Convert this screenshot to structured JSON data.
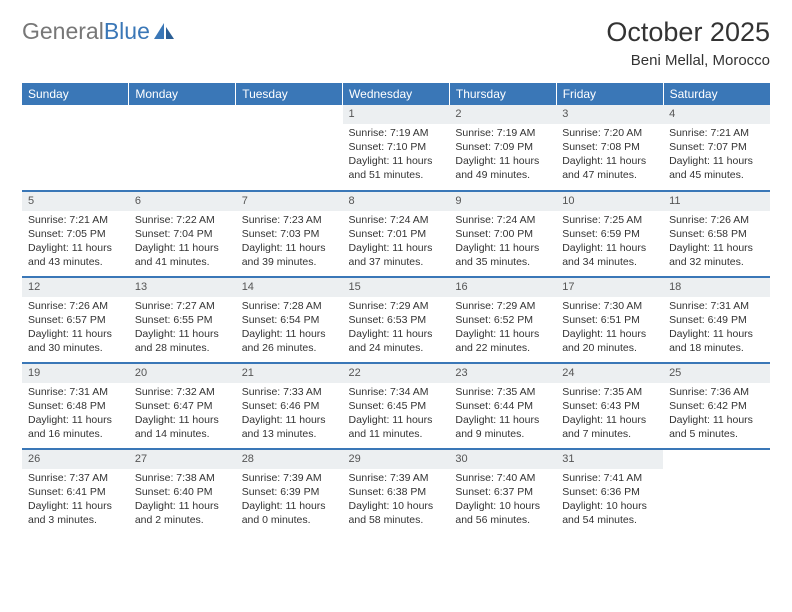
{
  "brand": {
    "part1": "General",
    "part2": "Blue"
  },
  "title": "October 2025",
  "location": "Beni Mellal, Morocco",
  "theme": {
    "header_bg": "#3a77b7",
    "header_fg": "#ffffff",
    "daynum_bg": "#eceff1",
    "row_border": "#3a77b7",
    "text_color": "#333333",
    "title_fontsize": 27,
    "subtitle_fontsize": 15,
    "dayhdr_fontsize": 12,
    "cell_fontsize": 10.5
  },
  "day_headers": [
    "Sunday",
    "Monday",
    "Tuesday",
    "Wednesday",
    "Thursday",
    "Friday",
    "Saturday"
  ],
  "weeks": [
    [
      {
        "n": "",
        "l1": "",
        "l2": "",
        "l3": "",
        "l4": ""
      },
      {
        "n": "",
        "l1": "",
        "l2": "",
        "l3": "",
        "l4": ""
      },
      {
        "n": "",
        "l1": "",
        "l2": "",
        "l3": "",
        "l4": ""
      },
      {
        "n": "1",
        "l1": "Sunrise: 7:19 AM",
        "l2": "Sunset: 7:10 PM",
        "l3": "Daylight: 11 hours",
        "l4": "and 51 minutes."
      },
      {
        "n": "2",
        "l1": "Sunrise: 7:19 AM",
        "l2": "Sunset: 7:09 PM",
        "l3": "Daylight: 11 hours",
        "l4": "and 49 minutes."
      },
      {
        "n": "3",
        "l1": "Sunrise: 7:20 AM",
        "l2": "Sunset: 7:08 PM",
        "l3": "Daylight: 11 hours",
        "l4": "and 47 minutes."
      },
      {
        "n": "4",
        "l1": "Sunrise: 7:21 AM",
        "l2": "Sunset: 7:07 PM",
        "l3": "Daylight: 11 hours",
        "l4": "and 45 minutes."
      }
    ],
    [
      {
        "n": "5",
        "l1": "Sunrise: 7:21 AM",
        "l2": "Sunset: 7:05 PM",
        "l3": "Daylight: 11 hours",
        "l4": "and 43 minutes."
      },
      {
        "n": "6",
        "l1": "Sunrise: 7:22 AM",
        "l2": "Sunset: 7:04 PM",
        "l3": "Daylight: 11 hours",
        "l4": "and 41 minutes."
      },
      {
        "n": "7",
        "l1": "Sunrise: 7:23 AM",
        "l2": "Sunset: 7:03 PM",
        "l3": "Daylight: 11 hours",
        "l4": "and 39 minutes."
      },
      {
        "n": "8",
        "l1": "Sunrise: 7:24 AM",
        "l2": "Sunset: 7:01 PM",
        "l3": "Daylight: 11 hours",
        "l4": "and 37 minutes."
      },
      {
        "n": "9",
        "l1": "Sunrise: 7:24 AM",
        "l2": "Sunset: 7:00 PM",
        "l3": "Daylight: 11 hours",
        "l4": "and 35 minutes."
      },
      {
        "n": "10",
        "l1": "Sunrise: 7:25 AM",
        "l2": "Sunset: 6:59 PM",
        "l3": "Daylight: 11 hours",
        "l4": "and 34 minutes."
      },
      {
        "n": "11",
        "l1": "Sunrise: 7:26 AM",
        "l2": "Sunset: 6:58 PM",
        "l3": "Daylight: 11 hours",
        "l4": "and 32 minutes."
      }
    ],
    [
      {
        "n": "12",
        "l1": "Sunrise: 7:26 AM",
        "l2": "Sunset: 6:57 PM",
        "l3": "Daylight: 11 hours",
        "l4": "and 30 minutes."
      },
      {
        "n": "13",
        "l1": "Sunrise: 7:27 AM",
        "l2": "Sunset: 6:55 PM",
        "l3": "Daylight: 11 hours",
        "l4": "and 28 minutes."
      },
      {
        "n": "14",
        "l1": "Sunrise: 7:28 AM",
        "l2": "Sunset: 6:54 PM",
        "l3": "Daylight: 11 hours",
        "l4": "and 26 minutes."
      },
      {
        "n": "15",
        "l1": "Sunrise: 7:29 AM",
        "l2": "Sunset: 6:53 PM",
        "l3": "Daylight: 11 hours",
        "l4": "and 24 minutes."
      },
      {
        "n": "16",
        "l1": "Sunrise: 7:29 AM",
        "l2": "Sunset: 6:52 PM",
        "l3": "Daylight: 11 hours",
        "l4": "and 22 minutes."
      },
      {
        "n": "17",
        "l1": "Sunrise: 7:30 AM",
        "l2": "Sunset: 6:51 PM",
        "l3": "Daylight: 11 hours",
        "l4": "and 20 minutes."
      },
      {
        "n": "18",
        "l1": "Sunrise: 7:31 AM",
        "l2": "Sunset: 6:49 PM",
        "l3": "Daylight: 11 hours",
        "l4": "and 18 minutes."
      }
    ],
    [
      {
        "n": "19",
        "l1": "Sunrise: 7:31 AM",
        "l2": "Sunset: 6:48 PM",
        "l3": "Daylight: 11 hours",
        "l4": "and 16 minutes."
      },
      {
        "n": "20",
        "l1": "Sunrise: 7:32 AM",
        "l2": "Sunset: 6:47 PM",
        "l3": "Daylight: 11 hours",
        "l4": "and 14 minutes."
      },
      {
        "n": "21",
        "l1": "Sunrise: 7:33 AM",
        "l2": "Sunset: 6:46 PM",
        "l3": "Daylight: 11 hours",
        "l4": "and 13 minutes."
      },
      {
        "n": "22",
        "l1": "Sunrise: 7:34 AM",
        "l2": "Sunset: 6:45 PM",
        "l3": "Daylight: 11 hours",
        "l4": "and 11 minutes."
      },
      {
        "n": "23",
        "l1": "Sunrise: 7:35 AM",
        "l2": "Sunset: 6:44 PM",
        "l3": "Daylight: 11 hours",
        "l4": "and 9 minutes."
      },
      {
        "n": "24",
        "l1": "Sunrise: 7:35 AM",
        "l2": "Sunset: 6:43 PM",
        "l3": "Daylight: 11 hours",
        "l4": "and 7 minutes."
      },
      {
        "n": "25",
        "l1": "Sunrise: 7:36 AM",
        "l2": "Sunset: 6:42 PM",
        "l3": "Daylight: 11 hours",
        "l4": "and 5 minutes."
      }
    ],
    [
      {
        "n": "26",
        "l1": "Sunrise: 7:37 AM",
        "l2": "Sunset: 6:41 PM",
        "l3": "Daylight: 11 hours",
        "l4": "and 3 minutes."
      },
      {
        "n": "27",
        "l1": "Sunrise: 7:38 AM",
        "l2": "Sunset: 6:40 PM",
        "l3": "Daylight: 11 hours",
        "l4": "and 2 minutes."
      },
      {
        "n": "28",
        "l1": "Sunrise: 7:39 AM",
        "l2": "Sunset: 6:39 PM",
        "l3": "Daylight: 11 hours",
        "l4": "and 0 minutes."
      },
      {
        "n": "29",
        "l1": "Sunrise: 7:39 AM",
        "l2": "Sunset: 6:38 PM",
        "l3": "Daylight: 10 hours",
        "l4": "and 58 minutes."
      },
      {
        "n": "30",
        "l1": "Sunrise: 7:40 AM",
        "l2": "Sunset: 6:37 PM",
        "l3": "Daylight: 10 hours",
        "l4": "and 56 minutes."
      },
      {
        "n": "31",
        "l1": "Sunrise: 7:41 AM",
        "l2": "Sunset: 6:36 PM",
        "l3": "Daylight: 10 hours",
        "l4": "and 54 minutes."
      },
      {
        "n": "",
        "l1": "",
        "l2": "",
        "l3": "",
        "l4": ""
      }
    ]
  ]
}
